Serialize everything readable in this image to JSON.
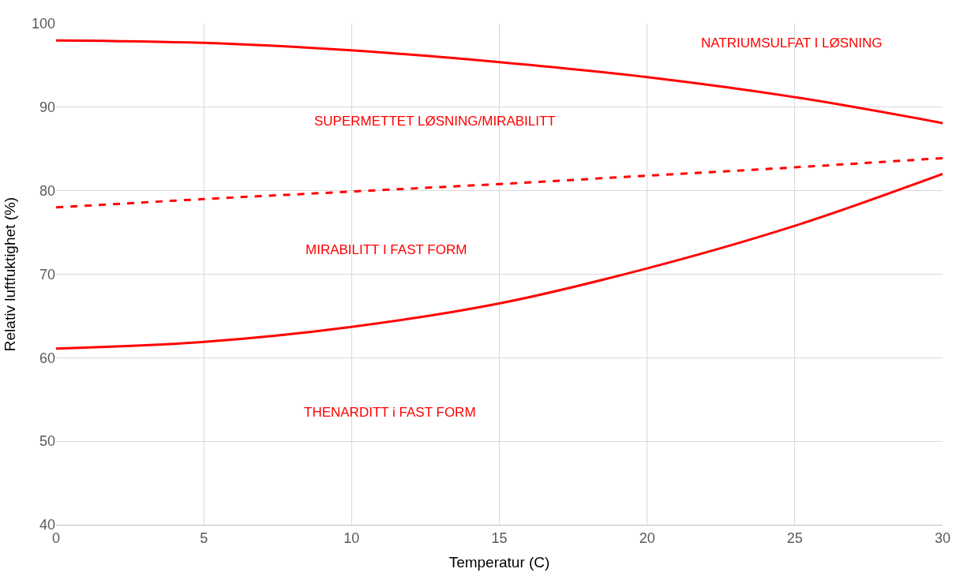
{
  "chart_data": {
    "type": "line",
    "xlabel": "Temperatur (C)",
    "ylabel": "Relativ luftfuktighet (%)",
    "x": [
      0,
      5,
      10,
      15,
      20,
      25,
      30
    ],
    "series": [
      {
        "color": "#ff0000",
        "line_style": "solid",
        "values": [
          98.0,
          97.7,
          96.8,
          95.4,
          93.6,
          91.2,
          88.1
        ]
      },
      {
        "color": "#ff0000",
        "line_style": "dashed",
        "values": [
          78.0,
          79.0,
          79.9,
          80.8,
          81.8,
          82.8,
          83.9
        ]
      },
      {
        "color": "#ff0000",
        "line_style": "solid",
        "values": [
          61.1,
          61.9,
          63.7,
          66.5,
          70.7,
          75.8,
          82.0
        ]
      }
    ],
    "xlim": [
      0,
      30
    ],
    "xticks": [
      0,
      5,
      10,
      15,
      20,
      25,
      30
    ],
    "ylim": [
      40,
      100
    ],
    "yticks": [
      40,
      50,
      60,
      70,
      80,
      90,
      100
    ],
    "grid": true,
    "marker": "none",
    "annotations": [
      "NATRIUMSULFAT I LØSNING",
      "SUPERMETTET LØSNING/MIRABILITT",
      "MIRABILITT I FAST FORM",
      "THENARDITT i FAST FORM"
    ]
  }
}
